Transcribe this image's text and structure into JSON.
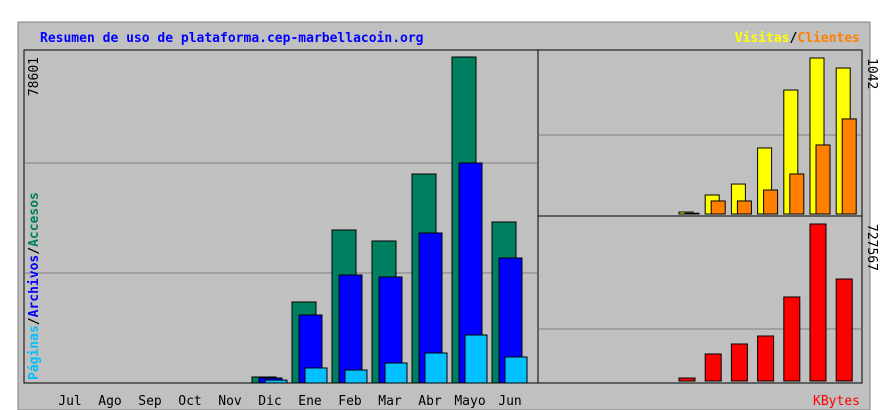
{
  "separator": "/",
  "chart_data": [
    {
      "type": "bar",
      "title": "Resumen de uso de plataforma.cep-marbellacoin.org",
      "categories": [
        "Jul",
        "Ago",
        "Sep",
        "Oct",
        "Nov",
        "Dic",
        "Ene",
        "Feb",
        "Mar",
        "Abr",
        "Mayo",
        "Jun"
      ],
      "ylim": [
        0,
        78601
      ],
      "yticks": [
        78601
      ],
      "series": [
        {
          "name": "Páginas",
          "color": "#00c0ff",
          "values": [
            0,
            0,
            0,
            0,
            0,
            700,
            3620,
            3130,
            4820,
            7230,
            11570,
            6270
          ]
        },
        {
          "name": "Archivos",
          "color": "#0000ff",
          "values": [
            0,
            0,
            0,
            0,
            0,
            1200,
            16390,
            26040,
            25560,
            36170,
            53040,
            30140
          ]
        },
        {
          "name": "Accesos",
          "color": "#008060",
          "values": [
            0,
            0,
            0,
            0,
            0,
            1450,
            19530,
            36890,
            34240,
            50390,
            78601,
            38820
          ]
        }
      ]
    },
    {
      "type": "bar",
      "ylim": [
        0,
        1042
      ],
      "yticks": [
        1042
      ],
      "series": [
        {
          "name": "Visitas",
          "color": "#ffff00",
          "values": [
            0,
            0,
            0,
            0,
            0,
            13,
            127,
            200,
            441,
            828,
            1042,
            975
          ]
        },
        {
          "name": "Clientes",
          "color": "#ff8000",
          "values": [
            0,
            0,
            0,
            0,
            0,
            5,
            87,
            87,
            160,
            267,
            461,
            635
          ]
        }
      ]
    },
    {
      "type": "bar",
      "ylim": [
        0,
        727567
      ],
      "yticks": [
        727567
      ],
      "series": [
        {
          "name": "KBytes",
          "color": "#ff0000",
          "values": [
            0,
            0,
            0,
            0,
            0,
            13900,
            125100,
            171500,
            208500,
            389300,
            727567,
            472700
          ]
        }
      ]
    }
  ]
}
